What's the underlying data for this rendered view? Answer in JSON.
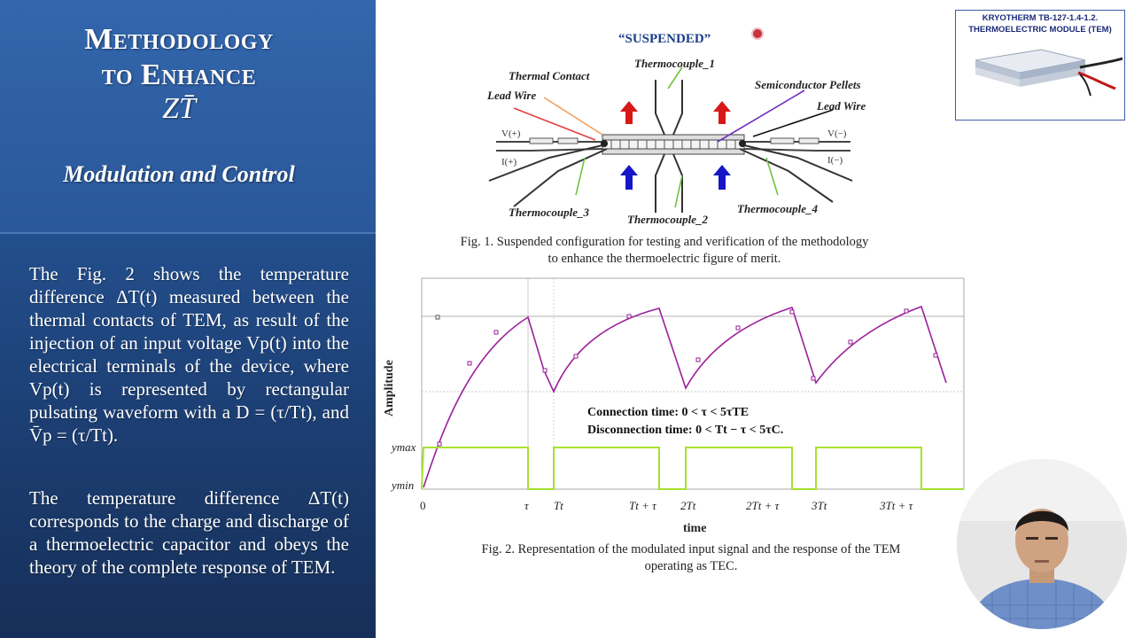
{
  "slide": {
    "title_line1": "Methodology",
    "title_line2": "to Enhance",
    "title_line3": "ZT̄",
    "subtitle": "Modulation and Control",
    "para1": "The Fig. 2 shows the temperature difference ΔT(t) measured between the thermal contacts of TEM, as result of the injection of an input voltage Vp(t) into the electrical terminals of the device, where Vp(t) is represented by rectangular pulsating waveform with a D = (τ/Tt), and V̄p = (τ/Tt).",
    "para2": "The temperature difference ΔT(t) corresponds to the charge and discharge of a thermoelectric capacitor and obeys the theory of the complete response of TEM."
  },
  "figure1": {
    "title": "“SUSPENDED”",
    "labels": {
      "thermal_contact": "Thermal Contact",
      "thermocouple_1": "Thermocouple_1",
      "semiconductor_pellets": "Semiconductor Pellets",
      "lead_wire_left": "Lead Wire",
      "lead_wire_right": "Lead Wire",
      "v_plus": "V(+)",
      "i_plus": "I(+)",
      "v_minus": "V(−)",
      "i_minus": "I(−)",
      "thermocouple_3": "Thermocouple_3",
      "thermocouple_2": "Thermocouple_2",
      "thermocouple_4": "Thermocouple_4"
    },
    "caption_line1": "Fig. 1. Suspended configuration for testing and verification of the methodology",
    "caption_line2": "to enhance the thermoelectric figure of merit."
  },
  "module": {
    "title_line1": "KRYOTHERM TB-127-1.4-1.2.",
    "title_line2": "THERMOELECTRIC MODULE (TEM)"
  },
  "figure2": {
    "ylabel": "Amplitude",
    "xlabel": "time",
    "ymax_label": "ymax",
    "ymin_label": "ymin",
    "ticks": [
      "0",
      "τ",
      "Tt",
      "Tt + τ",
      "2Tt",
      "2Tt + τ",
      "3Tt",
      "3Tt + τ"
    ],
    "annotation_line1": "Connection time: 0 < τ < 5τTE",
    "annotation_line2": "Disconnection time: 0 < Tt − τ < 5τC.",
    "caption_line1": "Fig. 2. Representation of the modulated input signal and the response of the TEM",
    "caption_line2": "operating as TEC.",
    "colors": {
      "response": "#9b1f9b",
      "pulse": "#a6e22e"
    }
  }
}
